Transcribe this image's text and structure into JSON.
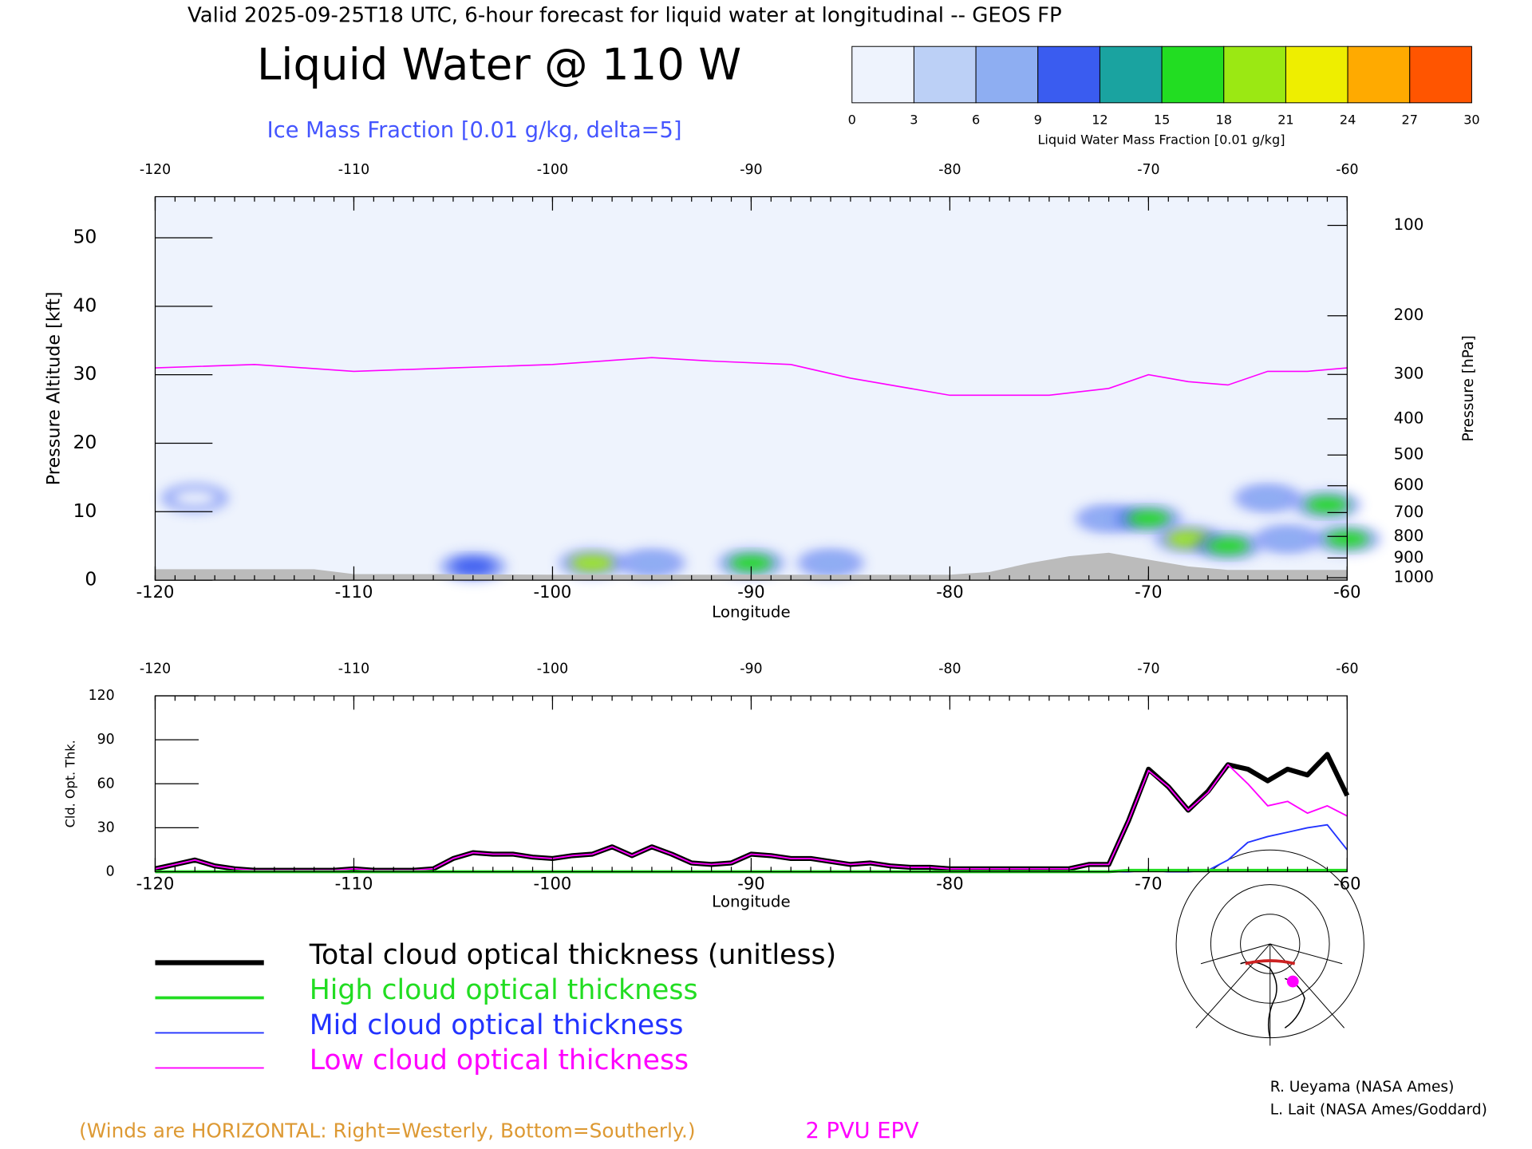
{
  "header": "Valid 2025-09-25T18 UTC, 6-hour forecast for liquid water at longitudinal -- GEOS FP",
  "credits": [
    "R. Ueyama (NASA Ames)",
    "L. Lait (NASA Ames/Goddard)"
  ],
  "chart_data": [
    {
      "type": "cross-section",
      "title": "Liquid Water @ 110 W",
      "subtitle": "Ice Mass Fraction [0.01 g/kg, delta=5]",
      "xlabel": "Longitude",
      "ylabel": "Pressure Altitude [kft]",
      "y2label": "Pressure [hPa]",
      "note": "(Winds are HORIZONTAL: Right=Westerly, Bottom=Southerly.)",
      "xlim": [
        -120,
        -60
      ],
      "xticks": [
        -120,
        -110,
        -100,
        -90,
        -80,
        -70,
        -60
      ],
      "ylim": [
        0,
        56
      ],
      "yticks": [
        0,
        10,
        20,
        30,
        40,
        50
      ],
      "y2scale": "pressure-altitude",
      "y2ticks": [
        100,
        200,
        300,
        400,
        500,
        600,
        700,
        800,
        900,
        1000
      ],
      "colorbar": {
        "label": "Liquid Water Mass Fraction [0.01 g/kg]",
        "ticks": [
          0,
          3,
          6,
          9,
          12,
          15,
          18,
          21,
          24,
          27,
          30
        ],
        "colors": [
          "#eef3fd",
          "#bcd0f6",
          "#8eaef2",
          "#3a5cf0",
          "#1aa3a0",
          "#22dd22",
          "#9be813",
          "#eeee00",
          "#ffaa00",
          "#ff5500"
        ]
      },
      "liquid_water": {
        "x": [
          -104,
          -98,
          -95,
          -90,
          -86,
          -72,
          -70,
          -68,
          -66,
          -64,
          -63,
          -61,
          -60,
          -118
        ],
        "y": [
          2,
          2.5,
          2.5,
          2.5,
          2.5,
          9,
          9,
          6,
          5,
          12,
          6,
          11,
          6,
          12
        ],
        "values": [
          9,
          18,
          8,
          15,
          6,
          6,
          16,
          18,
          17,
          6,
          8,
          17,
          15,
          2
        ]
      },
      "terrain": {
        "color": "#bbbbbb",
        "x": [
          -120,
          -112,
          -110,
          -106,
          -100,
          -90,
          -80,
          -78,
          -76,
          -74,
          -72,
          -70,
          -68,
          -66,
          -62,
          -60
        ],
        "values": [
          1.6,
          1.6,
          0.9,
          0.9,
          0.8,
          0.8,
          0.8,
          1.2,
          2.5,
          3.5,
          4,
          3,
          2,
          1.5,
          1.5,
          1.5
        ]
      },
      "series": [
        {
          "name": "2 PVU EPV",
          "color": "#ff00ff",
          "x": [
            -120,
            -115,
            -110,
            -105,
            -100,
            -95,
            -92,
            -88,
            -85,
            -80,
            -75,
            -72,
            -70,
            -68,
            -66,
            -64,
            -62,
            -60
          ],
          "values": [
            31,
            31.5,
            30.5,
            31,
            31.5,
            32.5,
            32,
            31.5,
            29.5,
            27,
            27,
            28,
            30,
            29,
            28.5,
            30.5,
            30.5,
            31
          ]
        }
      ]
    },
    {
      "type": "line",
      "xlabel": "Longitude",
      "ylabel": "Cld. Opt. Thk.",
      "xlim": [
        -120,
        -60
      ],
      "xticks": [
        -120,
        -110,
        -100,
        -90,
        -80,
        -70,
        -60
      ],
      "ylim": [
        0,
        120
      ],
      "yticks": [
        0,
        30,
        60,
        90,
        120
      ],
      "x": [
        -120,
        -119,
        -118,
        -117,
        -116,
        -115,
        -114,
        -113,
        -112,
        -111,
        -110,
        -109,
        -108,
        -107,
        -106,
        -105,
        -104,
        -103,
        -102,
        -101,
        -100,
        -99,
        -98,
        -97,
        -96,
        -95,
        -94,
        -93,
        -92,
        -91,
        -90,
        -89,
        -88,
        -87,
        -86,
        -85,
        -84,
        -83,
        -82,
        -81,
        -80,
        -79,
        -78,
        -77,
        -76,
        -75,
        -74,
        -73,
        -72,
        -71,
        -70,
        -69,
        -68,
        -67,
        -66,
        -65,
        -64,
        -63,
        -62,
        -61,
        -60
      ],
      "series": [
        {
          "name": "Total cloud optical thickness (unitless)",
          "color": "#000000",
          "width": 5,
          "values": [
            2,
            5,
            8,
            4,
            2,
            1,
            1,
            1,
            1,
            1,
            2,
            1,
            1,
            1,
            2,
            9,
            13,
            12,
            12,
            10,
            9,
            11,
            12,
            17,
            11,
            17,
            12,
            6,
            5,
            6,
            12,
            11,
            9,
            9,
            7,
            5,
            6,
            4,
            3,
            3,
            2,
            2,
            2,
            2,
            2,
            2,
            2,
            5,
            5,
            35,
            70,
            58,
            42,
            55,
            73,
            70,
            62,
            70,
            66,
            80,
            52
          ]
        },
        {
          "name": "High cloud optical thickness",
          "color": "#22dd22",
          "width": 3,
          "values": [
            0,
            0,
            0,
            0,
            0,
            0,
            0,
            0,
            0,
            0,
            0,
            0,
            0,
            0,
            0,
            0,
            0,
            0,
            0,
            0,
            0,
            0,
            0,
            0,
            0,
            0,
            0,
            0,
            0,
            0,
            0,
            0,
            0,
            0,
            0,
            0,
            0,
            0,
            0,
            0,
            0,
            0,
            0,
            0,
            0,
            0,
            0,
            0,
            0,
            1,
            1,
            1,
            1,
            1,
            1,
            1,
            1,
            1,
            1,
            1,
            1
          ]
        },
        {
          "name": "Mid cloud optical thickness",
          "color": "#2233ff",
          "width": 1.5,
          "values": [
            0,
            0,
            0,
            0,
            0,
            0,
            0,
            0,
            0,
            0,
            0,
            0,
            0,
            0,
            0,
            0,
            0,
            0,
            0,
            0,
            0,
            0,
            0,
            0,
            0,
            0,
            0,
            0,
            0,
            0,
            0,
            0,
            0,
            0,
            0,
            0,
            0,
            0,
            0,
            0,
            0,
            0,
            0,
            0,
            0,
            0,
            0,
            0,
            0,
            0,
            1,
            0,
            0,
            1,
            8,
            20,
            24,
            27,
            30,
            32,
            15
          ]
        },
        {
          "name": "Low cloud optical thickness",
          "color": "#ff00ff",
          "width": 1.5,
          "values": [
            2,
            5,
            8,
            4,
            2,
            1,
            1,
            1,
            1,
            1,
            2,
            1,
            1,
            1,
            2,
            9,
            13,
            12,
            12,
            10,
            9,
            11,
            12,
            17,
            11,
            17,
            12,
            6,
            5,
            6,
            12,
            11,
            9,
            9,
            7,
            5,
            6,
            4,
            3,
            3,
            2,
            2,
            2,
            2,
            2,
            2,
            2,
            5,
            5,
            35,
            69,
            58,
            42,
            54,
            73,
            60,
            45,
            48,
            40,
            45,
            38
          ]
        }
      ]
    }
  ]
}
